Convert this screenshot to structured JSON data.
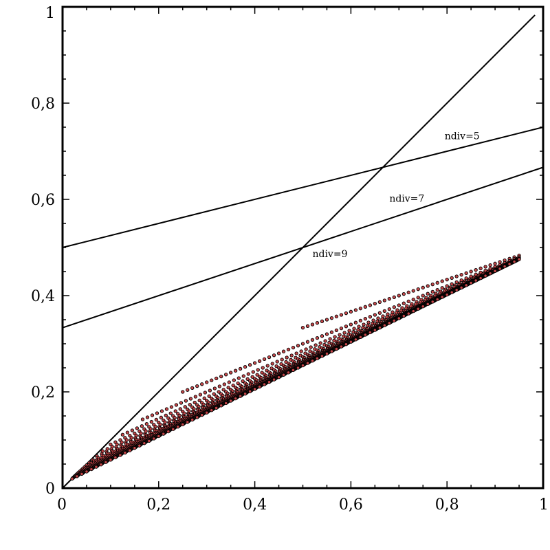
{
  "chart_data": {
    "type": "scatter",
    "title": "",
    "xlabel": "",
    "ylabel": "",
    "xlim": [
      0,
      1
    ],
    "ylim": [
      0,
      1
    ],
    "grid": false,
    "legend": "none",
    "x_ticks": [
      "0",
      "0,2",
      "0,4",
      "0,6",
      "0,8",
      "1"
    ],
    "y_ticks": [
      "0",
      "0,2",
      "0,4",
      "0,6",
      "0,8",
      "1"
    ],
    "annotations": [
      {
        "text": "ndiv=5",
        "x": 0.795,
        "y": 0.725
      },
      {
        "text": "ndiv=7",
        "x": 0.68,
        "y": 0.595
      },
      {
        "text": "ndiv=9",
        "x": 0.52,
        "y": 0.48
      }
    ],
    "reference_lines": [
      {
        "slope": 1,
        "intercept": 0,
        "x_range": [
          0,
          0.983
        ]
      },
      {
        "slope": 0.25,
        "intercept": 0.5,
        "x_range": [
          0,
          1
        ]
      },
      {
        "slope": 0.3333,
        "intercept": 0.3333,
        "x_range": [
          0,
          1
        ]
      }
    ],
    "point_families": {
      "ndiv_values": [
        3,
        5,
        7,
        9,
        11,
        13,
        15,
        17,
        19,
        21,
        23,
        25,
        27,
        29,
        31,
        33,
        35,
        37,
        39,
        41,
        43,
        45,
        47,
        49,
        51
      ],
      "y_formula": "y = (1 + (ndiv-1)*x) / (2*ndiv)",
      "x_start_formula": "x = 1/(ndiv-1)",
      "x_end": 0.95,
      "x_step": 0.01
    },
    "colors": {
      "point_fill": "#c8474a",
      "point_stroke": "#000000",
      "line": "#000000",
      "background": "#ffffff"
    }
  }
}
